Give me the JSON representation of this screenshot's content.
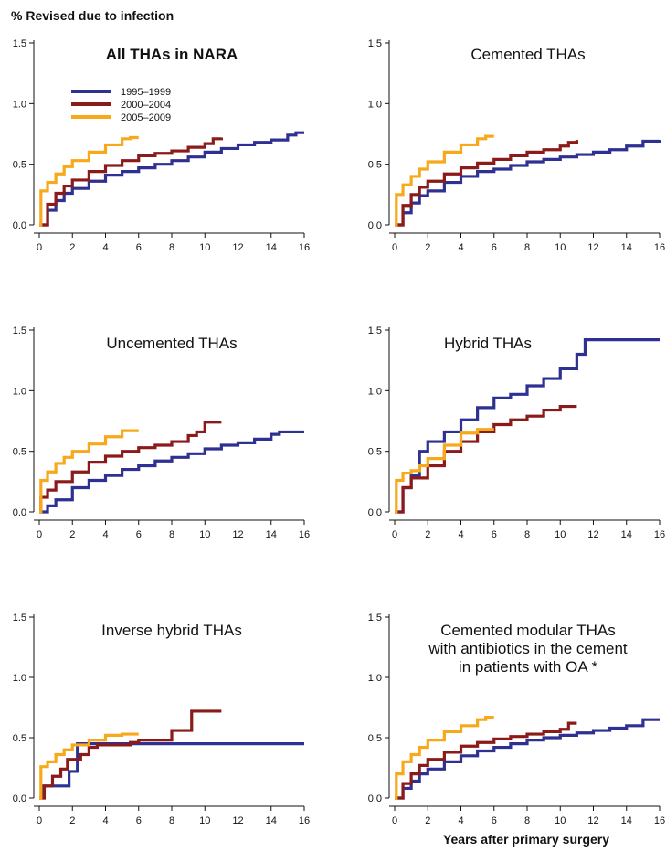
{
  "figure": {
    "ylabel": "% Revised due to infection",
    "xlabel": "Years after primary surgery"
  },
  "legend": [
    {
      "label": "1995–1999",
      "color": "#2e3192"
    },
    {
      "label": "2000–2004",
      "color": "#8b1a1a"
    },
    {
      "label": "2005–2009",
      "color": "#f7a81b"
    }
  ],
  "chart_data": [
    {
      "type": "line",
      "title": "All THAs in NARA",
      "title_bold": true,
      "xlim": [
        0,
        16
      ],
      "ylim": [
        0,
        1.5
      ],
      "xticks": [
        "0",
        "2",
        "4",
        "6",
        "8",
        "10",
        "12",
        "14",
        "16"
      ],
      "yticks": [
        "0.0",
        "0.5",
        "1.0",
        "1.5"
      ],
      "series": [
        {
          "name": "1995–1999",
          "color": "#2e3192",
          "step": true,
          "x": [
            0,
            0.5,
            1,
            1.5,
            2,
            3,
            4,
            5,
            6,
            7,
            8,
            9,
            10,
            11,
            12,
            13,
            14,
            15,
            15.5,
            16
          ],
          "y": [
            0,
            0.12,
            0.2,
            0.26,
            0.3,
            0.36,
            0.41,
            0.44,
            0.47,
            0.5,
            0.53,
            0.56,
            0.6,
            0.63,
            0.66,
            0.68,
            0.7,
            0.74,
            0.76,
            0.76
          ]
        },
        {
          "name": "2000–2004",
          "color": "#8b1a1a",
          "step": true,
          "x": [
            0,
            0.5,
            1,
            1.5,
            2,
            3,
            4,
            5,
            6,
            7,
            8,
            9,
            10,
            10.5,
            11
          ],
          "y": [
            0,
            0.17,
            0.26,
            0.32,
            0.37,
            0.44,
            0.49,
            0.53,
            0.57,
            0.59,
            0.61,
            0.64,
            0.67,
            0.71,
            0.72
          ]
        },
        {
          "name": "2005–2009",
          "color": "#f7a81b",
          "step": true,
          "x": [
            0,
            0.1,
            0.5,
            1,
            1.5,
            2,
            3,
            4,
            5,
            5.5,
            6
          ],
          "y": [
            0,
            0.28,
            0.35,
            0.42,
            0.48,
            0.53,
            0.6,
            0.66,
            0.71,
            0.72,
            0.72
          ]
        }
      ]
    },
    {
      "type": "line",
      "title": "Cemented THAs",
      "title_bold": false,
      "xlim": [
        0,
        16
      ],
      "ylim": [
        0,
        1.5
      ],
      "xticks": [
        "0",
        "2",
        "4",
        "6",
        "8",
        "10",
        "12",
        "14",
        "16"
      ],
      "yticks": [
        "0.0",
        "0.5",
        "1.0",
        "1.5"
      ],
      "series": [
        {
          "name": "1995–1999",
          "color": "#2e3192",
          "step": true,
          "x": [
            0,
            0.5,
            1,
            1.5,
            2,
            3,
            4,
            5,
            6,
            7,
            8,
            9,
            10,
            11,
            12,
            13,
            14,
            15,
            16
          ],
          "y": [
            0,
            0.1,
            0.18,
            0.24,
            0.28,
            0.35,
            0.4,
            0.44,
            0.46,
            0.49,
            0.52,
            0.54,
            0.56,
            0.58,
            0.6,
            0.62,
            0.65,
            0.69,
            0.7
          ]
        },
        {
          "name": "2000–2004",
          "color": "#8b1a1a",
          "step": true,
          "x": [
            0,
            0.5,
            1,
            1.5,
            2,
            3,
            4,
            5,
            6,
            7,
            8,
            9,
            10,
            10.5,
            11
          ],
          "y": [
            0,
            0.16,
            0.25,
            0.31,
            0.36,
            0.42,
            0.47,
            0.51,
            0.54,
            0.57,
            0.6,
            0.62,
            0.65,
            0.68,
            0.7
          ]
        },
        {
          "name": "2005–2009",
          "color": "#f7a81b",
          "step": true,
          "x": [
            0,
            0.1,
            0.5,
            1,
            1.5,
            2,
            3,
            4,
            5,
            5.5,
            6
          ],
          "y": [
            0,
            0.25,
            0.33,
            0.4,
            0.46,
            0.52,
            0.6,
            0.66,
            0.71,
            0.73,
            0.73
          ]
        }
      ]
    },
    {
      "type": "line",
      "title": "Uncemented THAs",
      "title_bold": false,
      "xlim": [
        0,
        16
      ],
      "ylim": [
        0,
        1.5
      ],
      "xticks": [
        "0",
        "2",
        "4",
        "6",
        "8",
        "10",
        "12",
        "14",
        "16"
      ],
      "yticks": [
        "0.0",
        "0.5",
        "1.0",
        "1.5"
      ],
      "series": [
        {
          "name": "1995–1999",
          "color": "#2e3192",
          "step": true,
          "x": [
            0,
            0.5,
            1,
            2,
            3,
            4,
            5,
            6,
            7,
            8,
            9,
            10,
            11,
            12,
            13,
            14,
            14.5,
            16
          ],
          "y": [
            0,
            0.05,
            0.1,
            0.2,
            0.26,
            0.3,
            0.35,
            0.38,
            0.42,
            0.45,
            0.48,
            0.52,
            0.55,
            0.57,
            0.6,
            0.64,
            0.66,
            0.66
          ]
        },
        {
          "name": "2000–2004",
          "color": "#8b1a1a",
          "step": true,
          "x": [
            0,
            0.1,
            0.5,
            1,
            2,
            3,
            4,
            5,
            6,
            7,
            8,
            9,
            9.5,
            10,
            11
          ],
          "y": [
            0,
            0.12,
            0.18,
            0.25,
            0.33,
            0.41,
            0.46,
            0.5,
            0.53,
            0.55,
            0.58,
            0.63,
            0.66,
            0.74,
            0.74
          ]
        },
        {
          "name": "2005–2009",
          "color": "#f7a81b",
          "step": true,
          "x": [
            0,
            0.1,
            0.5,
            1,
            1.5,
            2,
            3,
            4,
            5,
            6
          ],
          "y": [
            0,
            0.26,
            0.33,
            0.4,
            0.45,
            0.5,
            0.56,
            0.62,
            0.67,
            0.67
          ]
        }
      ]
    },
    {
      "type": "line",
      "title": "Hybrid THAs",
      "title_bold": false,
      "xlim": [
        0,
        16
      ],
      "ylim": [
        0,
        1.5
      ],
      "xticks": [
        "0",
        "2",
        "4",
        "6",
        "8",
        "10",
        "12",
        "14",
        "16"
      ],
      "yticks": [
        "0.0",
        "0.5",
        "1.0",
        "1.5"
      ],
      "series": [
        {
          "name": "1995–1999",
          "color": "#2e3192",
          "step": true,
          "x": [
            0,
            0.5,
            1,
            1.5,
            2,
            3,
            4,
            5,
            6,
            7,
            8,
            9,
            10,
            11,
            11.5,
            12,
            16
          ],
          "y": [
            0,
            0.2,
            0.3,
            0.5,
            0.58,
            0.66,
            0.76,
            0.86,
            0.94,
            0.97,
            1.04,
            1.1,
            1.18,
            1.3,
            1.42,
            1.42,
            1.42
          ]
        },
        {
          "name": "2000–2004",
          "color": "#8b1a1a",
          "step": true,
          "x": [
            0,
            0.5,
            1,
            2,
            3,
            4,
            5,
            6,
            7,
            8,
            9,
            10,
            11
          ],
          "y": [
            0,
            0.2,
            0.28,
            0.38,
            0.5,
            0.58,
            0.66,
            0.72,
            0.76,
            0.79,
            0.84,
            0.87,
            0.87
          ]
        },
        {
          "name": "2005–2009",
          "color": "#f7a81b",
          "step": true,
          "x": [
            0,
            0.1,
            0.5,
            1,
            1.5,
            2,
            3,
            4,
            5,
            6
          ],
          "y": [
            0,
            0.26,
            0.32,
            0.34,
            0.38,
            0.44,
            0.55,
            0.65,
            0.68,
            0.68
          ]
        }
      ]
    },
    {
      "type": "line",
      "title": "Inverse hybrid THAs",
      "title_bold": false,
      "xlim": [
        0,
        16
      ],
      "ylim": [
        0,
        1.5
      ],
      "xticks": [
        "0",
        "2",
        "4",
        "6",
        "8",
        "10",
        "12",
        "14",
        "16"
      ],
      "yticks": [
        "0.0",
        "0.5",
        "1.0",
        "1.5"
      ],
      "series": [
        {
          "name": "1995–1999",
          "color": "#2e3192",
          "step": true,
          "x": [
            0,
            0.2,
            1.8,
            2.3,
            16
          ],
          "y": [
            0,
            0.1,
            0.22,
            0.45,
            0.45
          ]
        },
        {
          "name": "2000–2004",
          "color": "#8b1a1a",
          "step": true,
          "x": [
            0,
            0.3,
            0.8,
            1.3,
            1.7,
            2.5,
            3,
            3.5,
            5.5,
            6,
            8,
            9,
            9.2,
            11
          ],
          "y": [
            0,
            0.1,
            0.18,
            0.24,
            0.32,
            0.36,
            0.42,
            0.44,
            0.46,
            0.48,
            0.56,
            0.56,
            0.72,
            0.72
          ]
        },
        {
          "name": "2005–2009",
          "color": "#f7a81b",
          "step": true,
          "x": [
            0,
            0.1,
            0.5,
            1,
            1.5,
            2,
            3,
            4,
            5,
            6
          ],
          "y": [
            0,
            0.26,
            0.3,
            0.36,
            0.4,
            0.44,
            0.48,
            0.52,
            0.53,
            0.53
          ]
        }
      ]
    },
    {
      "type": "line",
      "title": "Cemented modular THAs\nwith antibiotics in the cement\nin patients with OA *",
      "title_bold": false,
      "xlim": [
        0,
        16
      ],
      "ylim": [
        0,
        1.5
      ],
      "xticks": [
        "0",
        "2",
        "4",
        "6",
        "8",
        "10",
        "12",
        "14",
        "16"
      ],
      "yticks": [
        "0.0",
        "0.5",
        "1.0",
        "1.5"
      ],
      "series": [
        {
          "name": "1995–1999",
          "color": "#2e3192",
          "step": true,
          "x": [
            0,
            0.5,
            1,
            1.5,
            2,
            3,
            4,
            5,
            6,
            7,
            8,
            9,
            10,
            11,
            12,
            13,
            14,
            15,
            16
          ],
          "y": [
            0,
            0.08,
            0.14,
            0.2,
            0.24,
            0.3,
            0.35,
            0.39,
            0.42,
            0.45,
            0.48,
            0.5,
            0.52,
            0.54,
            0.56,
            0.58,
            0.6,
            0.65,
            0.65
          ]
        },
        {
          "name": "2000–2004",
          "color": "#8b1a1a",
          "step": true,
          "x": [
            0,
            0.5,
            1,
            1.5,
            2,
            3,
            4,
            5,
            6,
            7,
            8,
            9,
            10,
            10.5,
            11
          ],
          "y": [
            0,
            0.12,
            0.2,
            0.27,
            0.32,
            0.38,
            0.43,
            0.46,
            0.49,
            0.51,
            0.53,
            0.55,
            0.57,
            0.62,
            0.62
          ]
        },
        {
          "name": "2005–2009",
          "color": "#f7a81b",
          "step": true,
          "x": [
            0,
            0.1,
            0.5,
            1,
            1.5,
            2,
            3,
            4,
            5,
            5.5,
            6
          ],
          "y": [
            0,
            0.2,
            0.3,
            0.36,
            0.42,
            0.48,
            0.55,
            0.6,
            0.65,
            0.67,
            0.67
          ]
        }
      ]
    }
  ]
}
